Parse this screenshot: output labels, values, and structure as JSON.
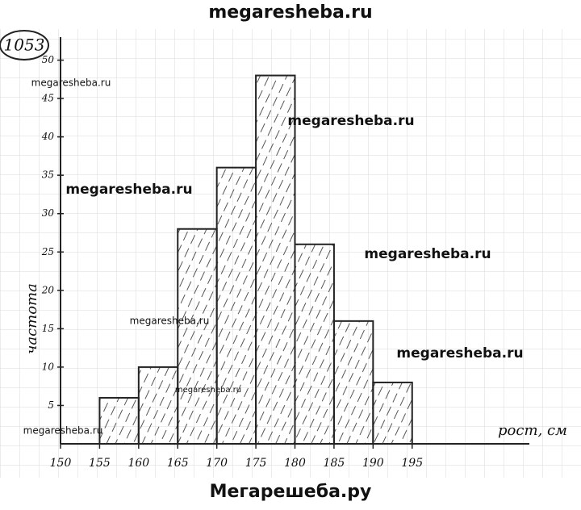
{
  "header": "megaresheba.ru",
  "footer": "Мегарешеба.ру",
  "problem_number": "1053",
  "watermarks": [
    "megaresheba.ru",
    "megaresheba.ru",
    "megaresheba.ru",
    "megaresheba.ru",
    "megaresheba.ru",
    "megaresheba.ru",
    "megaresheba.ru",
    "megaresheba.ru"
  ],
  "chart_data": {
    "type": "histogram",
    "xlabel": "рост, см",
    "ylabel": "частота",
    "bins": [
      155,
      160,
      165,
      170,
      175,
      180,
      185,
      190,
      195
    ],
    "values": [
      6,
      10,
      28,
      36,
      48,
      26,
      16,
      8
    ],
    "color": "#222",
    "xlim": [
      150,
      210
    ],
    "xticks": [
      150,
      155,
      160,
      165,
      170,
      175,
      180,
      185,
      190,
      195
    ],
    "ylim": [
      0,
      53
    ],
    "yticks": [
      5,
      10,
      15,
      20,
      25,
      30,
      35,
      40,
      45,
      50
    ]
  }
}
